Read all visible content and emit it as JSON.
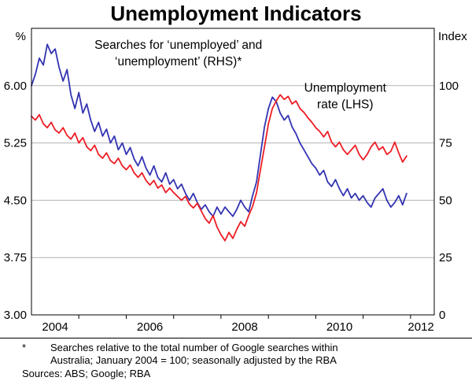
{
  "title": "Unemployment Indicators",
  "footnotes": {
    "asterisk_marker": "*",
    "line1": "Searches relative to the total number of Google searches within",
    "line2": "Australia; January 2004 = 100; seasonally adjusted by the RBA",
    "sources": "Sources: ABS; Google; RBA"
  },
  "chart_data": {
    "type": "line",
    "title": "Unemployment Indicators",
    "grid": true,
    "x_range": [
      2004.0,
      2012.5
    ],
    "left_axis": {
      "unit": "%",
      "range": [
        3.0,
        6.75
      ],
      "ticks": [
        {
          "v": 3.0,
          "label": "3.00"
        },
        {
          "v": 3.75,
          "label": "3.75"
        },
        {
          "v": 4.5,
          "label": "4.50"
        },
        {
          "v": 5.25,
          "label": "5.25"
        },
        {
          "v": 6.0,
          "label": "6.00"
        }
      ]
    },
    "right_axis": {
      "unit": "Index",
      "range": [
        0,
        125
      ],
      "ticks": [
        {
          "v": 0,
          "label": "0"
        },
        {
          "v": 25,
          "label": "25"
        },
        {
          "v": 50,
          "label": "50"
        },
        {
          "v": 75,
          "label": "75"
        },
        {
          "v": 100,
          "label": "100"
        }
      ]
    },
    "gridlines": [
      3.75,
      4.5,
      5.25,
      6.0
    ],
    "x_ticks": [
      2005,
      2006,
      2007,
      2008,
      2009,
      2010,
      2011,
      2012
    ],
    "x_labels": [
      {
        "v": 2004.5,
        "label": "2004"
      },
      {
        "v": 2006.5,
        "label": "2006"
      },
      {
        "v": 2008.5,
        "label": "2008"
      },
      {
        "v": 2010.5,
        "label": "2010"
      },
      {
        "v": 2012.22,
        "label": "2012"
      }
    ],
    "series": [
      {
        "id": "google-searches",
        "name": "Searches for ‘unemployed’ and ‘unemployment’ (RHS)",
        "axis": "right",
        "color": "#3333b2",
        "start": 2004.0,
        "step_months": 1,
        "values": [
          100,
          105,
          112,
          109,
          118,
          114,
          116,
          108,
          102,
          107,
          96,
          90,
          97,
          88,
          92,
          85,
          80,
          84,
          78,
          81,
          75,
          78,
          72,
          75,
          70,
          73,
          68,
          65,
          69,
          64,
          61,
          65,
          60,
          58,
          62,
          57,
          59,
          55,
          57,
          53,
          50,
          53,
          49,
          46,
          48,
          45,
          43,
          47,
          44,
          47,
          45,
          43,
          46,
          50,
          47,
          45,
          52,
          58,
          70,
          82,
          90,
          95,
          93,
          88,
          85,
          87,
          82,
          79,
          75,
          72,
          69,
          66,
          64,
          61,
          63,
          58,
          56,
          59,
          55,
          52,
          55,
          51,
          53,
          50,
          52,
          49,
          47,
          51,
          53,
          55,
          50,
          47,
          49,
          52,
          48,
          53
        ]
      },
      {
        "id": "unemployment-rate",
        "name": "Unemployment rate (LHS)",
        "axis": "left",
        "color": "#ed1c24",
        "start": 2004.0,
        "step_months": 1,
        "values": [
          5.6,
          5.55,
          5.62,
          5.5,
          5.45,
          5.52,
          5.42,
          5.38,
          5.45,
          5.35,
          5.3,
          5.38,
          5.25,
          5.32,
          5.2,
          5.15,
          5.22,
          5.1,
          5.05,
          5.12,
          5.02,
          4.98,
          5.05,
          4.95,
          4.9,
          4.96,
          4.86,
          4.8,
          4.86,
          4.76,
          4.7,
          4.76,
          4.66,
          4.7,
          4.6,
          4.66,
          4.6,
          4.55,
          4.5,
          4.55,
          4.45,
          4.4,
          4.46,
          4.36,
          4.26,
          4.2,
          4.3,
          4.15,
          4.05,
          3.97,
          4.08,
          4.0,
          4.12,
          4.22,
          4.16,
          4.3,
          4.42,
          4.6,
          4.9,
          5.2,
          5.5,
          5.7,
          5.8,
          5.88,
          5.82,
          5.86,
          5.76,
          5.8,
          5.7,
          5.65,
          5.58,
          5.52,
          5.45,
          5.4,
          5.33,
          5.4,
          5.26,
          5.2,
          5.26,
          5.16,
          5.1,
          5.16,
          5.22,
          5.1,
          5.03,
          5.1,
          5.2,
          5.26,
          5.16,
          5.2,
          5.1,
          5.14,
          5.26,
          5.12,
          5.0,
          5.08
        ]
      }
    ],
    "annotations": [
      {
        "id": "searches-label",
        "lines": [
          "Searches for ‘unemployed’ and",
          "‘unemployment’ (RHS)*"
        ],
        "x": 2007.1,
        "y": 6.48,
        "color": "#3333b2"
      },
      {
        "id": "unemployment-label",
        "lines": [
          "Unemployment",
          "rate (LHS)"
        ],
        "x": 2010.62,
        "y": 5.92,
        "color": "#ed1c24"
      }
    ]
  }
}
